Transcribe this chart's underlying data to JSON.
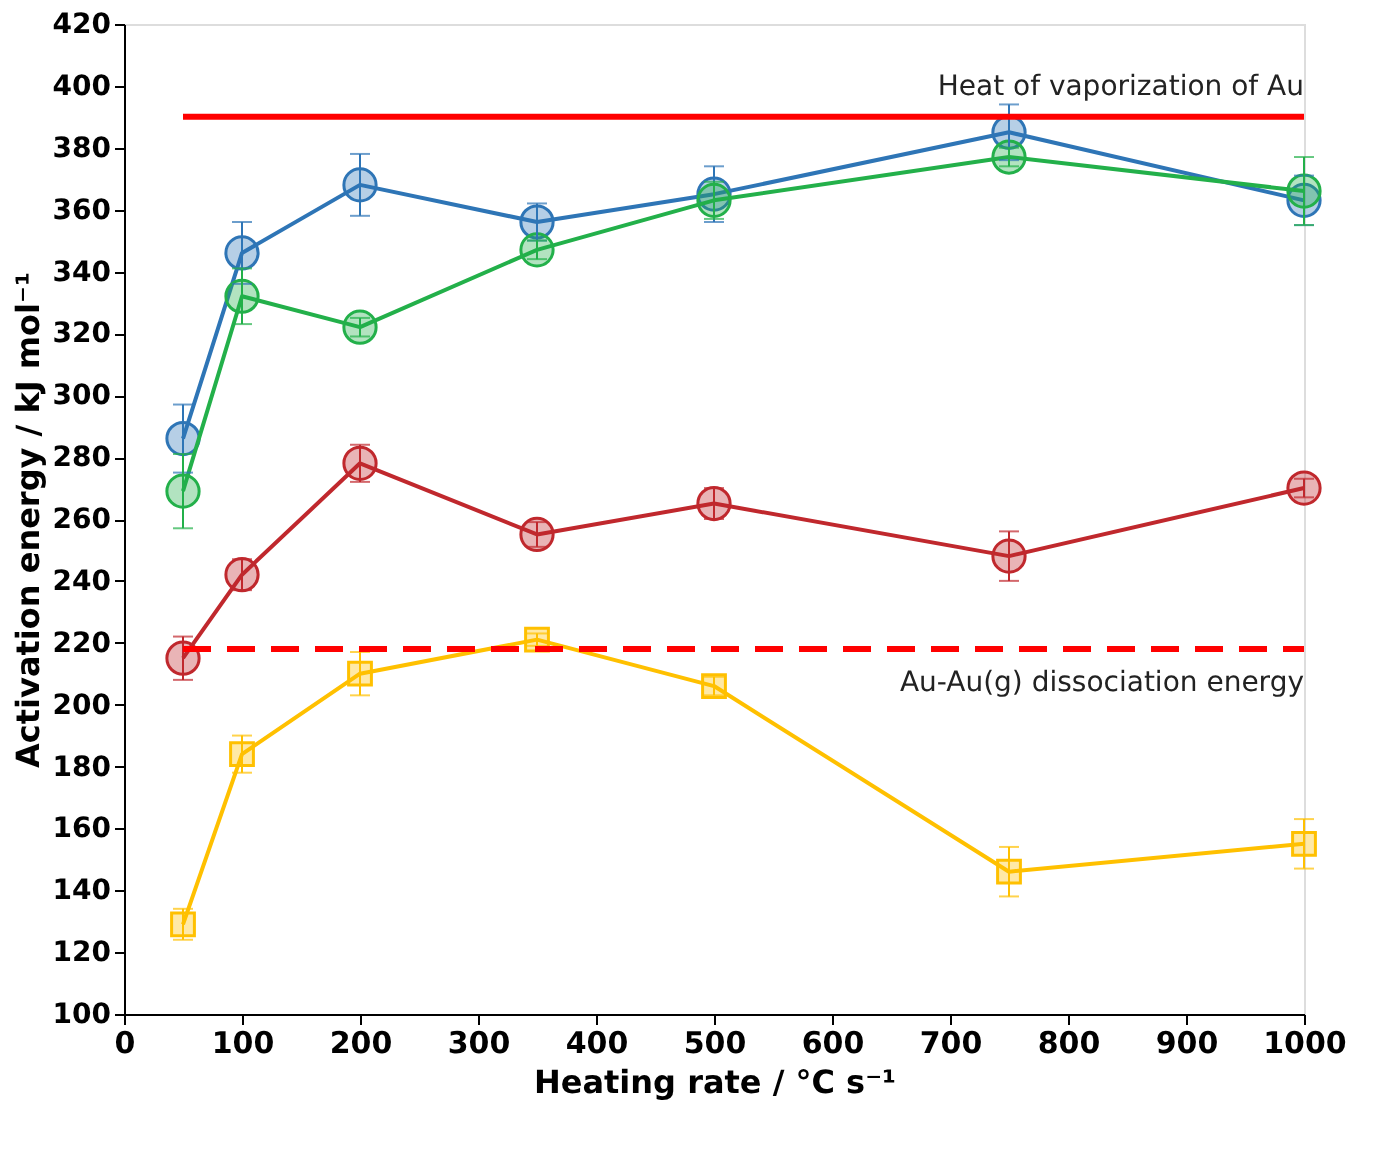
{
  "chart_data": {
    "type": "line",
    "xlabel": "Heating rate / °C s⁻¹",
    "ylabel": "Activation energy / kJ mol⁻¹",
    "xlim": [
      0,
      1000
    ],
    "xticks": [
      0,
      100,
      200,
      300,
      400,
      500,
      600,
      700,
      800,
      900,
      {
        "value": 1000,
        "label": "1000"
      }
    ],
    "ylim": [
      100,
      420
    ],
    "yticks": [
      100,
      120,
      140,
      160,
      180,
      200,
      220,
      240,
      260,
      280,
      300,
      320,
      340,
      360,
      380,
      400,
      420
    ],
    "x": [
      50,
      100,
      200,
      350,
      500,
      750,
      1000
    ],
    "grid": false,
    "line_style": "solid",
    "series": [
      {
        "color": "#2e75b6",
        "marker": "circle",
        "values": [
          286,
          346,
          368,
          356,
          365,
          385,
          363
        ],
        "errors": [
          11,
          10,
          10,
          6,
          9,
          9,
          8
        ]
      },
      {
        "color": "#23b04a",
        "marker": "circle",
        "values": [
          269,
          332,
          322,
          347,
          363,
          377,
          366
        ],
        "errors": [
          12,
          9,
          3,
          3,
          6,
          3,
          11
        ]
      },
      {
        "color": "#c0282d",
        "marker": "circle",
        "values": [
          215,
          242,
          278,
          255,
          265,
          248,
          270
        ],
        "errors": [
          7,
          5,
          6,
          4,
          5,
          8,
          3
        ]
      },
      {
        "color": "#ffc000",
        "marker": "square",
        "values": [
          129,
          184,
          210,
          221,
          206,
          146,
          155
        ],
        "errors": [
          5,
          6,
          7,
          2,
          3,
          8,
          8
        ]
      }
    ],
    "ref_lines": [
      {
        "axis": "y",
        "value": 390,
        "label": "Heat of vaporization of Au",
        "color": "#ff0000",
        "line_style": "solid"
      },
      {
        "axis": "y",
        "value": 218,
        "label": "Au-Au(g) dissociation energy",
        "color": "#ff0000",
        "line_style": "dashed"
      }
    ]
  }
}
